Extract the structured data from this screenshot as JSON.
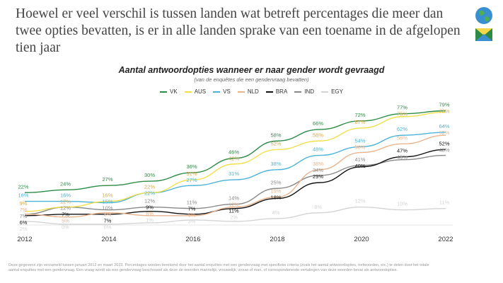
{
  "headline": "Hoewel er veel verschil is tussen landen wat betreft percentages die meer dan twee opties bevatten, is er in alle landen sprake van een toename in de afgelopen tien jaar",
  "chart_data": {
    "type": "line",
    "title": "Aantal antwoordopties wanneer er naar gender wordt gevraagd",
    "subtitle": "(van de enquêtes die een gendervraag bevatten)",
    "x": [
      2012,
      2013,
      2014,
      2015,
      2016,
      2017,
      2018,
      2019,
      2020,
      2021,
      2022
    ],
    "x_tick_labels": [
      "2012",
      "2014",
      "2016",
      "2018",
      "2020",
      "2022"
    ],
    "ylim": [
      0,
      80
    ],
    "grid": false,
    "legend_position": "top",
    "value_suffix": "%",
    "series": [
      {
        "name": "VK",
        "color": "#2e8b47",
        "values": [
          22,
          24,
          27,
          30,
          36,
          46,
          58,
          66,
          72,
          77,
          79
        ]
      },
      {
        "name": "AUS",
        "color": "#f2e04a",
        "label_color": "#d9a94a",
        "values": [
          9,
          12,
          16,
          22,
          31,
          42,
          52,
          58,
          67,
          75,
          78
        ]
      },
      {
        "name": "VS",
        "color": "#4bb3d8",
        "values": [
          16,
          16,
          15,
          22,
          27,
          31,
          38,
          48,
          54,
          62,
          64
        ]
      },
      {
        "name": "NLD",
        "color": "#e8b48e",
        "values": [
          7,
          5,
          8,
          6,
          6,
          12,
          19,
          38,
          50,
          56,
          62
        ]
      },
      {
        "name": "BRA",
        "color": "#111111",
        "values": [
          6,
          7,
          7,
          9,
          7,
          11,
          18,
          29,
          40,
          47,
          52
        ]
      },
      {
        "name": "IND",
        "color": "#888888",
        "values": [
          7,
          12,
          10,
          12,
          11,
          14,
          25,
          34,
          41,
          45,
          48
        ]
      },
      {
        "name": "EGY",
        "color": "#d4d4d4",
        "values": [
          2,
          0,
          0,
          1,
          3,
          2,
          4,
          8,
          12,
          10,
          11
        ]
      }
    ]
  },
  "footnote": "Deze gegevens zijn verzameld tussen januari 2012 en maart 2023. Percentages worden berekend door het aantal enquêtes met een gendervraag met specifieke criteria (zoals het aantal antwoordopties, trefwoorden, etc.) te delen door het totale aantal enquêtes met een gendervraag. Een vraag wordt als een gendervraag beschouwd als deze de woorden mannelijk, vrouwelijk, vrouw of man, of corresponderende vertalingen van deze woorden bevat als antwoordopties."
}
